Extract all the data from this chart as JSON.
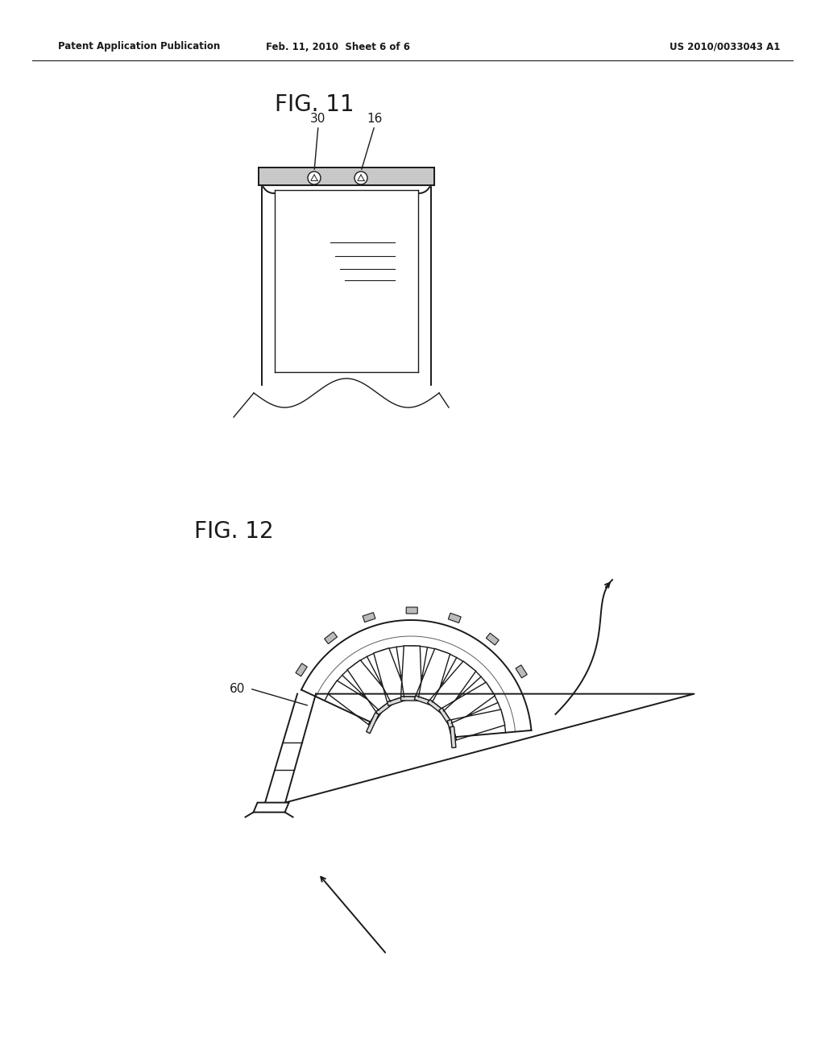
{
  "background_color": "#ffffff",
  "header_left": "Patent Application Publication",
  "header_center": "Feb. 11, 2010  Sheet 6 of 6",
  "header_right": "US 2010/0033043 A1",
  "fig11_label": "FIG. 11",
  "fig12_label": "FIG. 12",
  "label_30": "30",
  "label_16": "16",
  "label_60": "60",
  "line_color": "#1a1a1a"
}
